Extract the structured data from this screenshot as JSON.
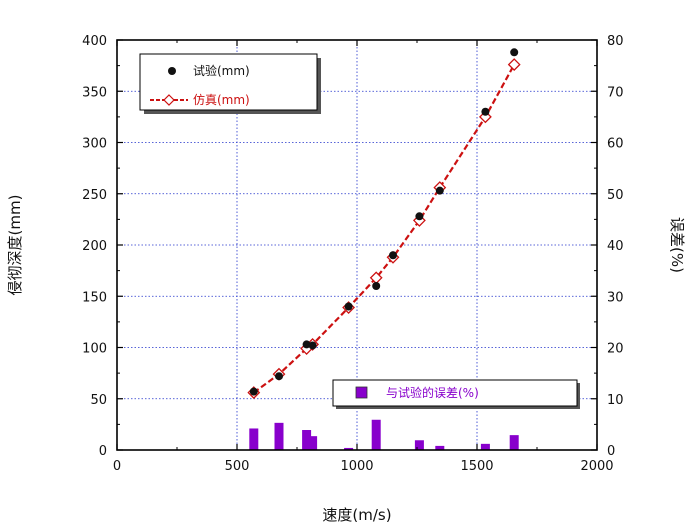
{
  "chart_data": {
    "type": "scatter",
    "xlabel": "速度(m/s)",
    "ylabel": "侵彻深度(mm)",
    "y2label": "误差(%)",
    "xlim": [
      0,
      2000
    ],
    "ylim": [
      0,
      400
    ],
    "y2lim": [
      0,
      80
    ],
    "grid": true,
    "xticks": [
      "0",
      "500",
      "1000",
      "1500",
      "2000"
    ],
    "yticks": [
      "0",
      "50",
      "100",
      "150",
      "200",
      "250",
      "300",
      "350",
      "400"
    ],
    "y2ticks": [
      "0",
      "10",
      "20",
      "30",
      "40",
      "50",
      "60",
      "70",
      "80"
    ],
    "series": [
      {
        "name": "试验(mm)",
        "axis": "left",
        "marker": "filled-circle",
        "color": "#111111",
        "x": [
          570,
          675,
          790,
          815,
          965,
          1080,
          1150,
          1260,
          1345,
          1535,
          1655
        ],
        "y": [
          57,
          72,
          103,
          102,
          140,
          160,
          190,
          228,
          253,
          330,
          388
        ]
      },
      {
        "name": "仿真(mm)",
        "axis": "left",
        "marker": "open-diamond",
        "line": "dashed",
        "color": "#cc1111",
        "x": [
          570,
          675,
          790,
          815,
          965,
          1080,
          1150,
          1260,
          1345,
          1535,
          1655
        ],
        "y": [
          56,
          74,
          99,
          103,
          139,
          168,
          188,
          224,
          256,
          325,
          376
        ]
      },
      {
        "name": "与试验的误差(%)",
        "axis": "right",
        "type": "bar",
        "color": "#8800cc",
        "x": [
          570,
          675,
          790,
          815,
          965,
          1080,
          1260,
          1345,
          1535,
          1655
        ],
        "y": [
          4.2,
          5.3,
          3.9,
          2.7,
          0.4,
          5.9,
          1.9,
          0.8,
          1.2,
          2.9
        ]
      }
    ],
    "legend_upper": "top-left",
    "legend_lower": "bottom-right"
  }
}
